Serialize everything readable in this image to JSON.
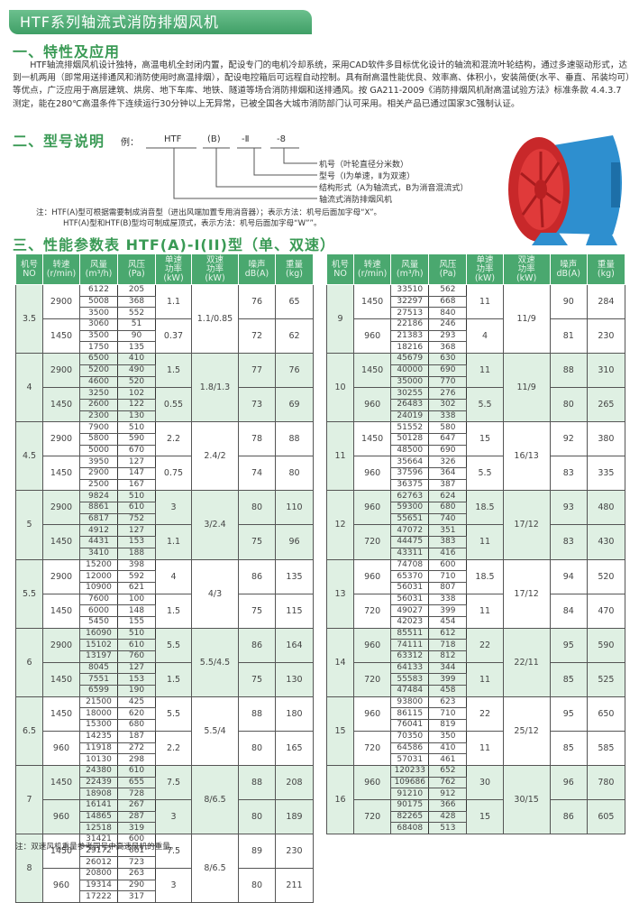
{
  "title": "HTF系列轴流式消防排烟风机",
  "section1": {
    "heading": "一、特性及应用",
    "text": "HTF轴流排烟风机设计独特，高温电机全封闭内置，配设专门的电机冷却系统，采用CAD软件多目标优化设计的轴流和混流叶轮结构，通过多速驱动形式，达到一机两用（即常用送排通风和消防使用时高温排烟），配设电控箱后可远程自动控制。具有耐高温性能优良、效率高、体积小，安装简便(水平、垂直、吊装均可）等优点，广泛应用于高层建筑、烘房、地下车库、地铁、隧道等场合消防排烟和送排通风。按 GA211-2009《消防排烟风机耐高温试验方法》标准条款 4.4.3.7测定，能在280℃高温条件下连续运行30分钟以上无异常，已被全国各大城市消防部门认可采用。相关产品已通过国家3C强制认证。"
  },
  "section2": {
    "heading": "二、型号说明",
    "example_label": "例：",
    "parts": [
      "HTF",
      "(B)",
      "-Ⅱ",
      "-8"
    ],
    "legend": [
      "机号（叶轮直径分米数）",
      "型号（Ⅰ为单速，Ⅱ为双速）",
      "结构形式（A为轴流式，B为消音混流式）",
      "轴流式消防排烟风机"
    ],
    "notes": [
      "注：HTF(A)型可根据需要制成消音型（进出风端加置专用消音器）；表示方法：机号后面加字母“X”。",
      "HTF(A)型和HTF(B)型均可制成屋顶式，表示方法：机号后面加字母“W””。"
    ]
  },
  "product_image": "axial-fan-red-blue",
  "colors": {
    "green_header": "#4aa86f",
    "light_green": "#dff0e3",
    "heading_green": "#3a9a55"
  },
  "section3": {
    "heading": "三、性能参数表 HTF(A)-I(II)型（单、双速）",
    "columns": [
      "机号\nNO",
      "转速\n(r/min)",
      "风量\n(m³/h)",
      "风压\n(Pa)",
      "单速\n功率\n(kW)",
      "双速\n功率\n(kW)",
      "噪声\ndB(A)",
      "重量\n(kg)"
    ],
    "left": [
      {
        "no": "3.5",
        "dual": "1.1/0.85",
        "speeds": [
          {
            "rpm": "2900",
            "flow": [
              "6122",
              "5008",
              "3500"
            ],
            "pa": [
              "205",
              "368",
              "552"
            ],
            "kw": "1.1",
            "db": "76",
            "kg": "65"
          },
          {
            "rpm": "1450",
            "flow": [
              "3060",
              "3500",
              "1750"
            ],
            "pa": [
              "51",
              "90",
              "135"
            ],
            "kw": "0.37",
            "db": "72",
            "kg": "62"
          }
        ]
      },
      {
        "no": "4",
        "dual": "1.8/1.3",
        "speeds": [
          {
            "rpm": "2900",
            "flow": [
              "6500",
              "5200",
              "4600"
            ],
            "pa": [
              "410",
              "490",
              "520"
            ],
            "kw": "1.5",
            "db": "77",
            "kg": "76"
          },
          {
            "rpm": "1450",
            "flow": [
              "3250",
              "2600",
              "2300"
            ],
            "pa": [
              "102",
              "122",
              "130"
            ],
            "kw": "0.55",
            "db": "73",
            "kg": "69"
          }
        ]
      },
      {
        "no": "4.5",
        "dual": "2.4/2",
        "speeds": [
          {
            "rpm": "2900",
            "flow": [
              "7900",
              "5800",
              "5000"
            ],
            "pa": [
              "510",
              "590",
              "670"
            ],
            "kw": "2.2",
            "db": "78",
            "kg": "88"
          },
          {
            "rpm": "1450",
            "flow": [
              "3950",
              "2900",
              "2500"
            ],
            "pa": [
              "127",
              "147",
              "167"
            ],
            "kw": "0.75",
            "db": "74",
            "kg": "80"
          }
        ]
      },
      {
        "no": "5",
        "dual": "3/2.4",
        "speeds": [
          {
            "rpm": "2900",
            "flow": [
              "9824",
              "8861",
              "6817"
            ],
            "pa": [
              "510",
              "610",
              "752"
            ],
            "kw": "3",
            "db": "80",
            "kg": "110"
          },
          {
            "rpm": "1450",
            "flow": [
              "4912",
              "4431",
              "3410"
            ],
            "pa": [
              "127",
              "153",
              "188"
            ],
            "kw": "1.1",
            "db": "75",
            "kg": "96"
          }
        ]
      },
      {
        "no": "5.5",
        "dual": "4/3",
        "speeds": [
          {
            "rpm": "2900",
            "flow": [
              "15200",
              "12000",
              "10900"
            ],
            "pa": [
              "398",
              "592",
              "621"
            ],
            "kw": "4",
            "db": "86",
            "kg": "135"
          },
          {
            "rpm": "1450",
            "flow": [
              "7600",
              "6000",
              "5450"
            ],
            "pa": [
              "100",
              "148",
              "155"
            ],
            "kw": "1.5",
            "db": "75",
            "kg": "115"
          }
        ]
      },
      {
        "no": "6",
        "dual": "5.5/4.5",
        "speeds": [
          {
            "rpm": "2900",
            "flow": [
              "16090",
              "15102",
              "13197"
            ],
            "pa": [
              "510",
              "610",
              "760"
            ],
            "kw": "5.5",
            "db": "86",
            "kg": "164"
          },
          {
            "rpm": "1450",
            "flow": [
              "8045",
              "7551",
              "6599"
            ],
            "pa": [
              "127",
              "153",
              "190"
            ],
            "kw": "1.5",
            "db": "75",
            "kg": "130"
          }
        ]
      },
      {
        "no": "6.5",
        "dual": "5.5/4",
        "speeds": [
          {
            "rpm": "1450",
            "flow": [
              "21500",
              "18000",
              "15300"
            ],
            "pa": [
              "425",
              "620",
              "680"
            ],
            "kw": "5.5",
            "db": "88",
            "kg": "180"
          },
          {
            "rpm": "960",
            "flow": [
              "14235",
              "11918",
              "10130"
            ],
            "pa": [
              "187",
              "272",
              "298"
            ],
            "kw": "2.2",
            "db": "80",
            "kg": "165"
          }
        ]
      },
      {
        "no": "7",
        "dual": "8/6.5",
        "speeds": [
          {
            "rpm": "1450",
            "flow": [
              "24380",
              "22439",
              "18908"
            ],
            "pa": [
              "610",
              "655",
              "728"
            ],
            "kw": "7.5",
            "db": "88",
            "kg": "208"
          },
          {
            "rpm": "960",
            "flow": [
              "16141",
              "14865",
              "12518"
            ],
            "pa": [
              "267",
              "287",
              "319"
            ],
            "kw": "3",
            "db": "80",
            "kg": "189"
          }
        ]
      },
      {
        "no": "8",
        "dual": "8/6.5",
        "speeds": [
          {
            "rpm": "1450",
            "flow": [
              "31421",
              "29172",
              "26012"
            ],
            "pa": [
              "600",
              "661",
              "723"
            ],
            "kw": "7.5",
            "db": "89",
            "kg": "230"
          },
          {
            "rpm": "960",
            "flow": [
              "20800",
              "19314",
              "17222"
            ],
            "pa": [
              "263",
              "290",
              "317"
            ],
            "kw": "3",
            "db": "80",
            "kg": "211"
          }
        ]
      }
    ],
    "right": [
      {
        "no": "9",
        "dual": "11/9",
        "speeds": [
          {
            "rpm": "1450",
            "flow": [
              "33510",
              "32297",
              "27513"
            ],
            "pa": [
              "562",
              "668",
              "840"
            ],
            "kw": "11",
            "db": "90",
            "kg": "284"
          },
          {
            "rpm": "960",
            "flow": [
              "22186",
              "21383",
              "18216"
            ],
            "pa": [
              "246",
              "293",
              "368"
            ],
            "kw": "4",
            "db": "81",
            "kg": "230"
          }
        ]
      },
      {
        "no": "10",
        "dual": "11/9",
        "speeds": [
          {
            "rpm": "1450",
            "flow": [
              "45679",
              "40000",
              "35000"
            ],
            "pa": [
              "630",
              "690",
              "770"
            ],
            "kw": "11",
            "db": "88",
            "kg": "310"
          },
          {
            "rpm": "960",
            "flow": [
              "30255",
              "26483",
              "24019"
            ],
            "pa": [
              "276",
              "302",
              "338"
            ],
            "kw": "5.5",
            "db": "80",
            "kg": "265"
          }
        ]
      },
      {
        "no": "11",
        "dual": "16/13",
        "speeds": [
          {
            "rpm": "1450",
            "flow": [
              "51552",
              "50128",
              "48500"
            ],
            "pa": [
              "580",
              "647",
              "690"
            ],
            "kw": "15",
            "db": "92",
            "kg": "380"
          },
          {
            "rpm": "960",
            "flow": [
              "35664",
              "37596",
              "36375"
            ],
            "pa": [
              "326",
              "364",
              "387"
            ],
            "kw": "5.5",
            "db": "83",
            "kg": "335"
          }
        ]
      },
      {
        "no": "12",
        "dual": "17/12",
        "speeds": [
          {
            "rpm": "960",
            "flow": [
              "62763",
              "59300",
              "55651"
            ],
            "pa": [
              "624",
              "680",
              "740"
            ],
            "kw": "18.5",
            "db": "93",
            "kg": "480"
          },
          {
            "rpm": "720",
            "flow": [
              "47072",
              "44475",
              "43311"
            ],
            "pa": [
              "351",
              "383",
              "416"
            ],
            "kw": "11",
            "db": "83",
            "kg": "430"
          }
        ]
      },
      {
        "no": "13",
        "dual": "17/12",
        "speeds": [
          {
            "rpm": "960",
            "flow": [
              "74708",
              "65370",
              "56031"
            ],
            "pa": [
              "600",
              "710",
              "807"
            ],
            "kw": "18.5",
            "db": "94",
            "kg": "520"
          },
          {
            "rpm": "720",
            "flow": [
              "56031",
              "49027",
              "42023"
            ],
            "pa": [
              "338",
              "399",
              "454"
            ],
            "kw": "11",
            "db": "84",
            "kg": "470"
          }
        ]
      },
      {
        "no": "14",
        "dual": "22/11",
        "speeds": [
          {
            "rpm": "960",
            "flow": [
              "85511",
              "74111",
              "63312"
            ],
            "pa": [
              "612",
              "718",
              "812"
            ],
            "kw": "22",
            "db": "95",
            "kg": "590"
          },
          {
            "rpm": "720",
            "flow": [
              "64133",
              "55583",
              "47484"
            ],
            "pa": [
              "344",
              "399",
              "458"
            ],
            "kw": "11",
            "db": "85",
            "kg": "525"
          }
        ]
      },
      {
        "no": "15",
        "dual": "25/12",
        "speeds": [
          {
            "rpm": "960",
            "flow": [
              "93800",
              "86115",
              "76041"
            ],
            "pa": [
              "623",
              "710",
              "819"
            ],
            "kw": "22",
            "db": "95",
            "kg": "650"
          },
          {
            "rpm": "720",
            "flow": [
              "70350",
              "64586",
              "57031"
            ],
            "pa": [
              "350",
              "410",
              "461"
            ],
            "kw": "11",
            "db": "85",
            "kg": "585"
          }
        ]
      },
      {
        "no": "16",
        "dual": "30/15",
        "speeds": [
          {
            "rpm": "960",
            "flow": [
              "120233",
              "109686",
              "91210"
            ],
            "pa": [
              "652",
              "762",
              "912"
            ],
            "kw": "30",
            "db": "96",
            "kg": "780"
          },
          {
            "rpm": "720",
            "flow": [
              "90175",
              "82265",
              "68408"
            ],
            "pa": [
              "366",
              "428",
              "513"
            ],
            "kw": "15",
            "db": "86",
            "kg": "605"
          }
        ]
      }
    ],
    "footnote": "注：双速风机重量参考同号中高速风机的重量。"
  }
}
